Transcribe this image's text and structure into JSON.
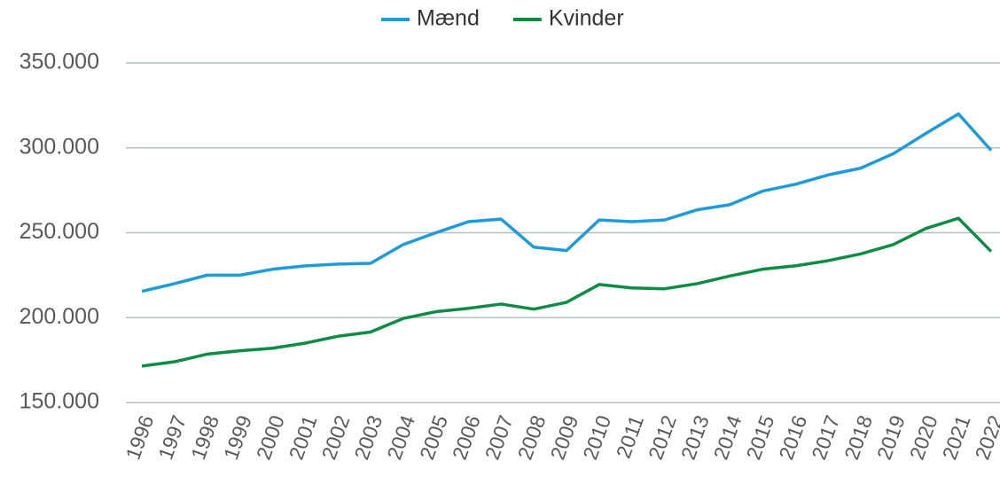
{
  "chart_data": {
    "type": "line",
    "categories": [
      "1996",
      "1997",
      "1998",
      "1999",
      "2000",
      "2001",
      "2002",
      "2003",
      "2004",
      "2005",
      "2006",
      "2007",
      "2008",
      "2009",
      "2010",
      "2011",
      "2012",
      "2013",
      "2014",
      "2015",
      "2016",
      "2017",
      "2018",
      "2019",
      "2020",
      "2021",
      "2022"
    ],
    "series": [
      {
        "name": "Mænd",
        "color": "#1f9bd7",
        "values": [
          215500,
          220000,
          225000,
          225000,
          228500,
          230500,
          231500,
          232000,
          243000,
          250000,
          256500,
          258000,
          241500,
          239500,
          257500,
          256500,
          257500,
          263500,
          266500,
          274500,
          278500,
          284000,
          288000,
          296500,
          308500,
          320000,
          298500
        ]
      },
      {
        "name": "Kvinder",
        "color": "#0e8b45",
        "values": [
          171500,
          174000,
          178500,
          180500,
          182000,
          185000,
          189000,
          191500,
          199500,
          203500,
          205500,
          208000,
          205000,
          209000,
          219500,
          217500,
          217000,
          220000,
          224500,
          228500,
          230500,
          233500,
          237500,
          243000,
          252500,
          258500,
          239000
        ]
      }
    ],
    "ylim": [
      150000,
      350000
    ],
    "yticks": [
      {
        "value": 150000,
        "label": "150.000"
      },
      {
        "value": 200000,
        "label": "200.000"
      },
      {
        "value": 250000,
        "label": "250.000"
      },
      {
        "value": 300000,
        "label": "300.000"
      },
      {
        "value": 350000,
        "label": "350.000"
      }
    ],
    "grid": true,
    "legend": "top"
  }
}
